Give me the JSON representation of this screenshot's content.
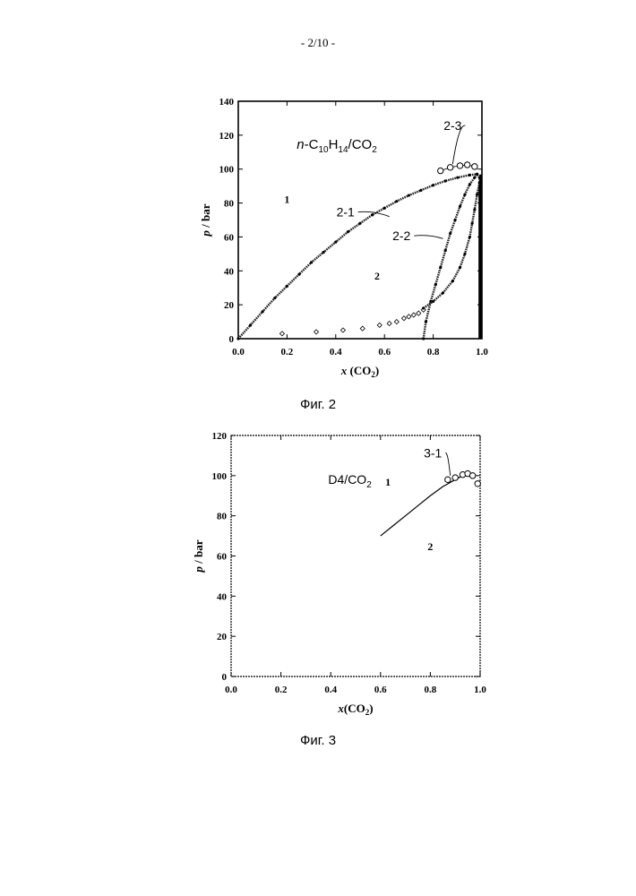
{
  "page": {
    "number": "- 2/10 -"
  },
  "figures": [
    {
      "caption": "Фиг. 2"
    },
    {
      "caption": "Фиг. 3"
    }
  ],
  "chart_data": [
    {
      "type": "scatter",
      "title_text": {
        "prefix": "n",
        "main": "-C",
        "sub1": "10",
        "mid": "H",
        "sub2": "14",
        "tail": "/CO",
        "sub3": "2"
      },
      "xlabel": {
        "main": "x (CO",
        "sub": "2",
        "tail": ")"
      },
      "ylabel": "p / bar",
      "xlim": [
        0,
        1.0
      ],
      "ylim": [
        0,
        140
      ],
      "xticks": [
        "0.0",
        "0.2",
        "0.4",
        "0.6",
        "0.8",
        "1.0"
      ],
      "xtick_values": [
        0,
        0.2,
        0.4,
        0.6,
        0.8,
        1.0
      ],
      "yticks": [
        "0",
        "20",
        "40",
        "60",
        "80",
        "100",
        "120",
        "140"
      ],
      "ytick_values": [
        0,
        20,
        40,
        60,
        80,
        100,
        120,
        140
      ],
      "region_labels": [
        {
          "text": "1",
          "x": 0.2,
          "y": 80
        },
        {
          "text": "2",
          "x": 0.57,
          "y": 35
        }
      ],
      "annotations": [
        {
          "text": "2-1",
          "x": 0.44,
          "y": 72,
          "target": [
            0.62,
            72
          ]
        },
        {
          "text": "2-2",
          "x": 0.67,
          "y": 58,
          "target": [
            0.84,
            59
          ]
        },
        {
          "text": "2-3",
          "x": 0.88,
          "y": 123,
          "target": [
            0.88,
            103
          ]
        }
      ],
      "series": [
        {
          "label": "2-1",
          "style": "dense-dots",
          "x": [
            0,
            0.05,
            0.1,
            0.15,
            0.2,
            0.25,
            0.3,
            0.35,
            0.4,
            0.45,
            0.5,
            0.55,
            0.6,
            0.65,
            0.7,
            0.75,
            0.8,
            0.85,
            0.9,
            0.95,
            0.98
          ],
          "y": [
            0,
            8,
            16,
            24,
            31,
            38,
            45,
            51,
            57,
            63,
            68,
            73,
            77,
            81,
            84.5,
            87.5,
            90.5,
            93,
            95,
            96.5,
            97
          ]
        },
        {
          "label": "2-2",
          "style": "dense-dots",
          "x": [
            0.76,
            0.77,
            0.79,
            0.81,
            0.83,
            0.85,
            0.87,
            0.89,
            0.91,
            0.93,
            0.95,
            0.97,
            0.98,
            0.99,
            0.995
          ],
          "y": [
            0,
            10,
            22,
            32,
            42,
            52,
            62,
            70,
            78,
            85,
            91,
            95,
            97,
            95,
            90
          ]
        },
        {
          "label": "2-2 lower",
          "style": "dense-dots",
          "x": [
            0.76,
            0.8,
            0.84,
            0.88,
            0.91,
            0.93,
            0.95,
            0.96,
            0.97,
            0.98,
            0.99,
            0.995
          ],
          "y": [
            18,
            22,
            27,
            34,
            42,
            50,
            60,
            68,
            76,
            85,
            92,
            96
          ]
        },
        {
          "label": "vertical boundary",
          "style": "thick-line",
          "x": [
            0.99,
            0.99,
            0.995,
            0.995
          ],
          "y": [
            0,
            90,
            95,
            0
          ]
        },
        {
          "label": "dew points",
          "style": "sparse-diamonds",
          "x": [
            0.18,
            0.32,
            0.43,
            0.51,
            0.58,
            0.62,
            0.65,
            0.68,
            0.7,
            0.72,
            0.74,
            0.76
          ],
          "y": [
            3,
            4,
            5,
            6,
            8,
            9,
            10,
            12,
            13,
            14,
            15,
            17
          ]
        },
        {
          "label": "2-3",
          "style": "circles",
          "x": [
            0.83,
            0.87,
            0.91,
            0.94,
            0.97
          ],
          "y": [
            99,
            101,
            102,
            102.5,
            101.5
          ]
        }
      ]
    },
    {
      "type": "line",
      "title_text": {
        "main": "D4/CO",
        "sub": "2"
      },
      "xlabel": {
        "main": "x(CO",
        "sub": "2",
        "tail": ")"
      },
      "ylabel": "p / bar",
      "xlim": [
        0,
        1.0
      ],
      "ylim": [
        0,
        120
      ],
      "xticks": [
        "0.0",
        "0.2",
        "0.4",
        "0.6",
        "0.8",
        "1.0"
      ],
      "xtick_values": [
        0,
        0.2,
        0.4,
        0.6,
        0.8,
        1.0
      ],
      "yticks": [
        "0",
        "20",
        "40",
        "60",
        "80",
        "100",
        "120"
      ],
      "ytick_values": [
        0,
        20,
        40,
        60,
        80,
        100,
        120
      ],
      "region_labels": [
        {
          "text": "1",
          "x": 0.63,
          "y": 95
        },
        {
          "text": "2",
          "x": 0.8,
          "y": 63
        }
      ],
      "annotations": [
        {
          "text": "3-1",
          "x": 0.81,
          "y": 109,
          "target": [
            0.88,
            100
          ]
        }
      ],
      "series": [
        {
          "label": "line",
          "style": "line",
          "x": [
            0.6,
            0.65,
            0.7,
            0.75,
            0.8,
            0.85,
            0.9,
            0.93,
            0.95,
            0.97
          ],
          "y": [
            70,
            75,
            80,
            85,
            90,
            94.5,
            98,
            100,
            101,
            101
          ]
        },
        {
          "label": "3-1",
          "style": "circles",
          "x": [
            0.87,
            0.9,
            0.93,
            0.95,
            0.97,
            0.99
          ],
          "y": [
            98,
            99,
            100.5,
            101,
            100,
            96
          ]
        }
      ]
    }
  ]
}
